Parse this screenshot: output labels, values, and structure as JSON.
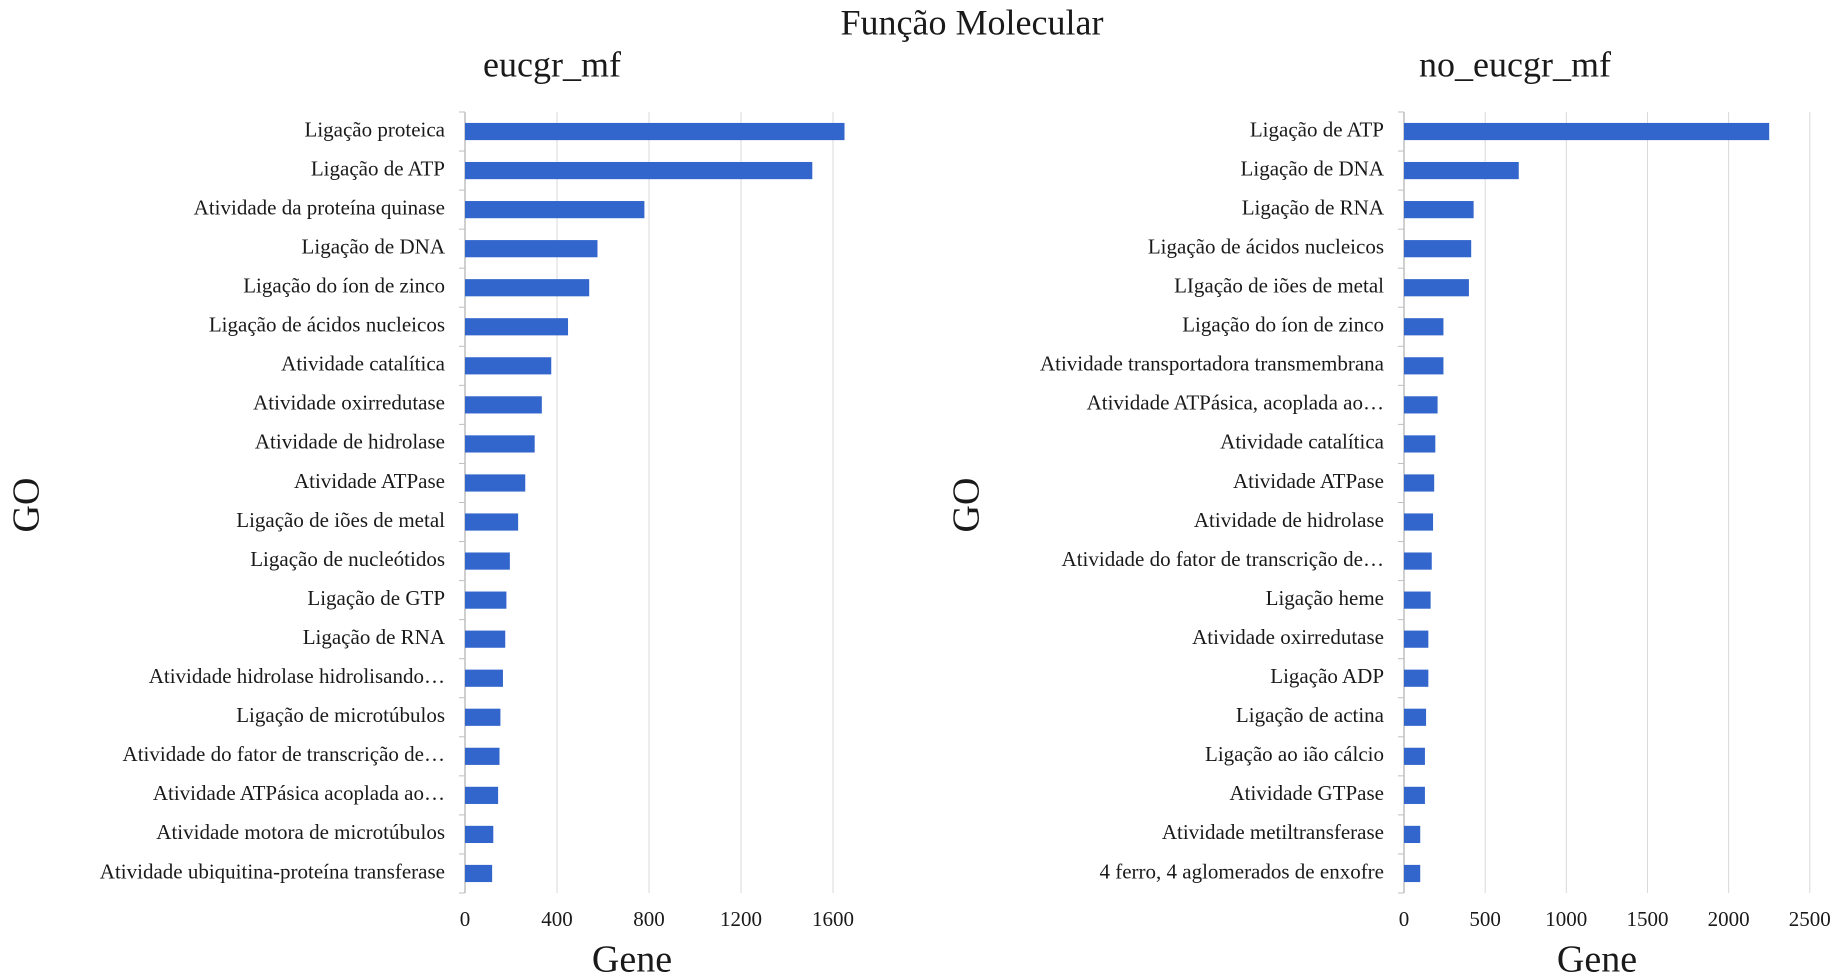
{
  "title": "Função Molecular",
  "chart_data": [
    {
      "type": "barh",
      "title": "eucgr_mf",
      "xlabel": "Gene",
      "ylabel": "GO",
      "color": "#3366cc",
      "grid": true,
      "categories": [
        "Ligação proteica",
        "Ligação de ATP",
        "Atividade da proteína quinase",
        "Ligação de DNA",
        "Ligação do íon de zinco",
        "Ligação de ácidos nucleicos",
        "Atividade catalítica",
        "Atividade oxirredutase",
        "Atividade de hidrolase",
        "Atividade ATPase",
        "Ligação de iões de metal",
        "Ligação de nucleótidos",
        "Ligação de GTP",
        "Ligação de RNA",
        "Atividade hidrolase hidrolisando…",
        "Ligação de microtúbulos",
        "Atividade do fator de transcrição de…",
        "Atividade ATPásica acoplada ao…",
        "Atividade motora de microtúbulos",
        "Atividade ubiquitina-proteína transferase"
      ],
      "values": [
        1650,
        1510,
        780,
        576,
        540,
        448,
        375,
        334,
        303,
        262,
        231,
        195,
        180,
        175,
        165,
        154,
        150,
        144,
        123,
        118
      ],
      "xlim": [
        0,
        1800
      ],
      "xticks": [
        0,
        400,
        800,
        1200,
        1600
      ]
    },
    {
      "type": "barh",
      "title": "no_eucgr_mf",
      "xlabel": "Gene",
      "ylabel": "GO",
      "color": "#3366cc",
      "grid": true,
      "categories": [
        "Ligação de ATP",
        "Ligação de DNA",
        "Ligação de RNA",
        "Ligação de ácidos nucleicos",
        "LIgação de iões de metal",
        "Ligação do íon de zinco",
        "Atividade transportadora transmembrana",
        "Atividade ATPásica, acoplada ao…",
        "Atividade catalítica",
        "Atividade ATPase",
        "Atividade de hidrolase",
        "Atividade do fator de transcrição de…",
        "Ligação heme",
        "Atividade oxirredutase",
        "Ligação ADP",
        "Ligação de actina",
        "Ligação ao ião cálcio",
        "Atividade GTPase",
        "Atividade metiltransferase",
        "4 ferro, 4 aglomerados de enxofre"
      ],
      "values": [
        2250,
        707,
        429,
        414,
        400,
        243,
        243,
        207,
        193,
        186,
        179,
        171,
        164,
        150,
        150,
        136,
        129,
        129,
        100,
        100
      ],
      "xlim": [
        0,
        2600
      ],
      "xticks": [
        0,
        500,
        1000,
        1500,
        2000,
        2500
      ]
    }
  ]
}
